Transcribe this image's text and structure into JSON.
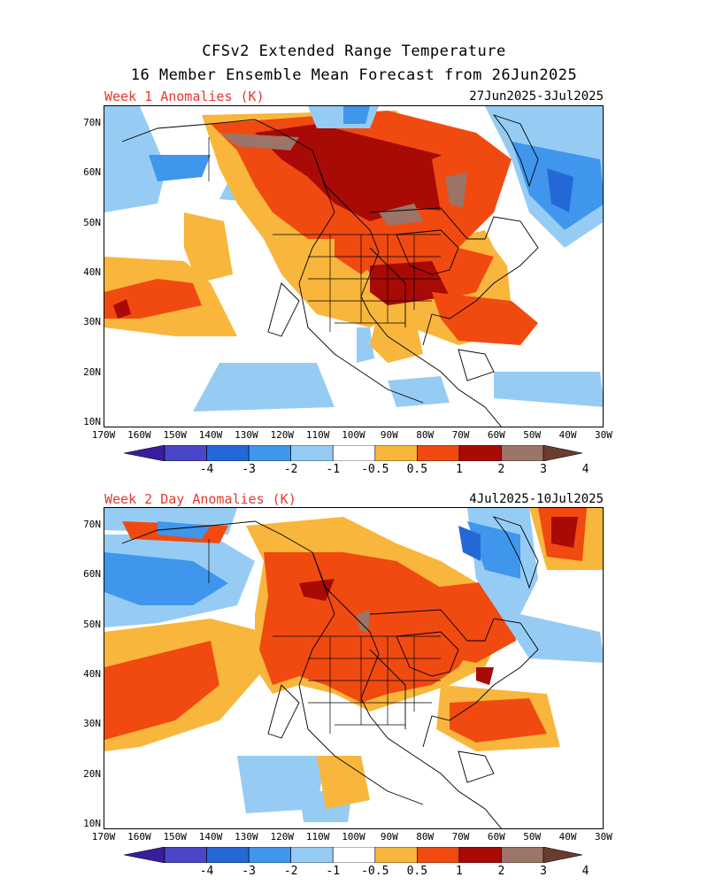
{
  "title_line1": "CFSv2 Extended Range Temperature",
  "title_line2": "16 Member Ensemble Mean Forecast from 26Jun2025",
  "panels": [
    {
      "label": "Week 1 Anomalies (K)",
      "dates": "27Jun2025-3Jul2025"
    },
    {
      "label": "Week 2 Day Anomalies (K)",
      "dates": "4Jul2025-10Jul2025"
    }
  ],
  "lat_labels": [
    "70N",
    "60N",
    "50N",
    "40N",
    "30N",
    "20N",
    "10N"
  ],
  "lon_labels": [
    "170W",
    "160W",
    "150W",
    "140W",
    "130W",
    "120W",
    "110W",
    "100W",
    "90W",
    "80W",
    "70W",
    "60W",
    "50W",
    "40W",
    "30W"
  ],
  "colorbar_labels": [
    "-4",
    "-3",
    "-2",
    "-1",
    "-0.5",
    "0.5",
    "1",
    "2",
    "3",
    "4"
  ],
  "colorbar_colors": [
    "#3a1d9e",
    "#4a46c8",
    "#2468d8",
    "#3f96ec",
    "#96ccf4",
    "#ffffff",
    "#f8b63c",
    "#f04a10",
    "#a80a06",
    "#9c7468",
    "#6a3c30"
  ],
  "map": {
    "lon_range": [
      -170,
      -30
    ],
    "lat_range": [
      10,
      75
    ]
  }
}
